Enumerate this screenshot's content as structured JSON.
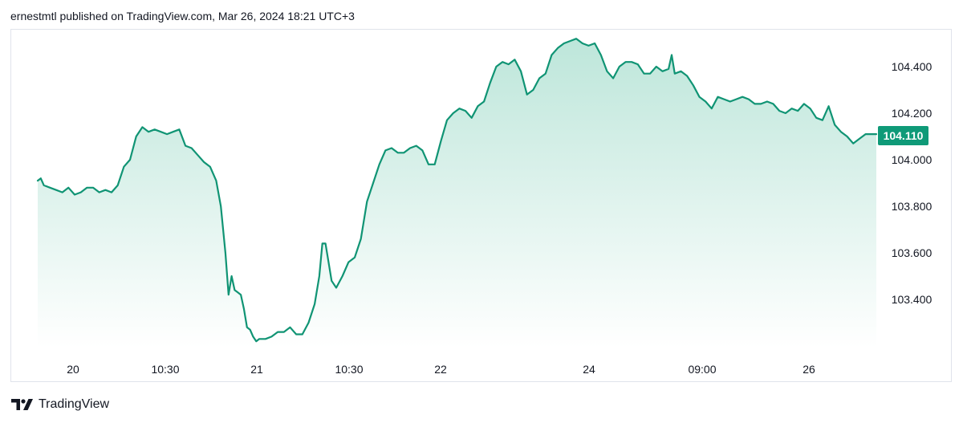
{
  "header": {
    "text": "ernestmtl published on TradingView.com, Mar 26, 2024 18:21 UTC+3"
  },
  "footer": {
    "brand": "TradingView",
    "logo_icon": "tradingview-logo-icon"
  },
  "colors": {
    "line": "#109474",
    "fill_top": "#bde6da",
    "fill_bottom": "#ffffff",
    "label_bg": "#0f9a78",
    "frame": "#e0e3eb"
  },
  "chart_data": {
    "type": "area",
    "symbol_last_value": "104.110",
    "ylim": [
      103.2,
      104.55
    ],
    "y_ticks": [
      "104.400",
      "104.200",
      "104.000",
      "103.800",
      "103.600",
      "103.400"
    ],
    "x_ticks": [
      "20",
      "10:30",
      "21",
      "10:30",
      "22",
      "24",
      "09:00",
      "26"
    ],
    "x": [
      0,
      4,
      8,
      16,
      24,
      32,
      40,
      48,
      56,
      64,
      72,
      80,
      88,
      96,
      104,
      112,
      120,
      128,
      136,
      144,
      152,
      160,
      168,
      176,
      184,
      192,
      200,
      208,
      216,
      224,
      232,
      238,
      244,
      248,
      252,
      256,
      260,
      264,
      268,
      272,
      276,
      280,
      284,
      288,
      296,
      304,
      312,
      320,
      328,
      336,
      344,
      352,
      360,
      366,
      370,
      374,
      378,
      382,
      388,
      396,
      404,
      412,
      420,
      428,
      436,
      444,
      452,
      460,
      468,
      476,
      484,
      492,
      500,
      508,
      516,
      524,
      532,
      540,
      548,
      556,
      564,
      572,
      580,
      588,
      596,
      604,
      612,
      620,
      628,
      636,
      644,
      652,
      660,
      668,
      676,
      684,
      692,
      700,
      708,
      716,
      724,
      732,
      740,
      748,
      756,
      764,
      772,
      780,
      788,
      796,
      804,
      812,
      820,
      824,
      828,
      836,
      844,
      852,
      860,
      868,
      876,
      884,
      892,
      900,
      908,
      916,
      924,
      932,
      940,
      948,
      956,
      964,
      972,
      980,
      988,
      996,
      1004,
      1012,
      1020,
      1028,
      1036,
      1044,
      1052,
      1060,
      1068,
      1076,
      1084,
      1090
    ],
    "values": [
      103.91,
      103.92,
      103.89,
      103.88,
      103.87,
      103.86,
      103.88,
      103.85,
      103.86,
      103.88,
      103.88,
      103.86,
      103.87,
      103.86,
      103.89,
      103.97,
      104.0,
      104.1,
      104.14,
      104.12,
      104.13,
      104.12,
      104.11,
      104.12,
      104.13,
      104.06,
      104.05,
      104.02,
      103.99,
      103.97,
      103.91,
      103.8,
      103.6,
      103.42,
      103.5,
      103.44,
      103.43,
      103.42,
      103.36,
      103.28,
      103.27,
      103.24,
      103.22,
      103.23,
      103.23,
      103.24,
      103.26,
      103.26,
      103.28,
      103.25,
      103.25,
      103.3,
      103.38,
      103.5,
      103.64,
      103.64,
      103.56,
      103.48,
      103.45,
      103.5,
      103.56,
      103.58,
      103.66,
      103.82,
      103.9,
      103.98,
      104.04,
      104.05,
      104.03,
      104.03,
      104.05,
      104.06,
      104.04,
      103.98,
      103.98,
      104.08,
      104.17,
      104.2,
      104.22,
      104.21,
      104.18,
      104.23,
      104.25,
      104.33,
      104.4,
      104.42,
      104.41,
      104.43,
      104.38,
      104.28,
      104.3,
      104.35,
      104.37,
      104.45,
      104.48,
      104.5,
      104.51,
      104.52,
      104.5,
      104.49,
      104.5,
      104.45,
      104.38,
      104.35,
      104.4,
      104.42,
      104.42,
      104.41,
      104.37,
      104.37,
      104.4,
      104.38,
      104.39,
      104.45,
      104.37,
      104.38,
      104.36,
      104.32,
      104.27,
      104.25,
      104.22,
      104.27,
      104.26,
      104.25,
      104.26,
      104.27,
      104.26,
      104.24,
      104.24,
      104.25,
      104.24,
      104.21,
      104.2,
      104.22,
      104.21,
      104.24,
      104.22,
      104.18,
      104.17,
      104.23,
      104.15,
      104.12,
      104.1,
      104.07,
      104.09,
      104.11,
      104.11,
      104.11
    ]
  }
}
